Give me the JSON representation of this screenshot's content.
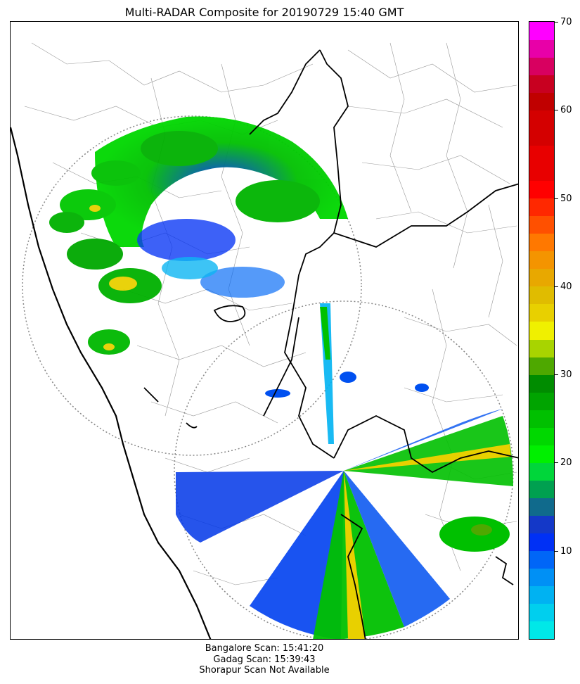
{
  "title": "Multi-RADAR Composite for 20190729 15:40 GMT",
  "colorbar": {
    "min": 0,
    "max": 70,
    "tick_labels": [
      "10",
      "20",
      "30",
      "40",
      "50",
      "60",
      "70"
    ],
    "tick_values": [
      10,
      20,
      30,
      40,
      50,
      60,
      70
    ],
    "levels": [
      {
        "from": 0,
        "to": 2,
        "color": "#00e8e8"
      },
      {
        "from": 2,
        "to": 4,
        "color": "#00cfee"
      },
      {
        "from": 4,
        "to": 6,
        "color": "#00b2f2"
      },
      {
        "from": 6,
        "to": 8,
        "color": "#0090f5"
      },
      {
        "from": 8,
        "to": 10,
        "color": "#0066f7"
      },
      {
        "from": 10,
        "to": 12,
        "color": "#0030f5"
      },
      {
        "from": 12,
        "to": 14,
        "color": "#1438c8"
      },
      {
        "from": 14,
        "to": 16,
        "color": "#106a8c"
      },
      {
        "from": 16,
        "to": 18,
        "color": "#00a050"
      },
      {
        "from": 18,
        "to": 20,
        "color": "#00d63a"
      },
      {
        "from": 20,
        "to": 22,
        "color": "#00f000"
      },
      {
        "from": 22,
        "to": 24,
        "color": "#00d800"
      },
      {
        "from": 24,
        "to": 26,
        "color": "#00c000"
      },
      {
        "from": 26,
        "to": 28,
        "color": "#00a400"
      },
      {
        "from": 28,
        "to": 30,
        "color": "#008c00"
      },
      {
        "from": 30,
        "to": 32,
        "color": "#4ea800"
      },
      {
        "from": 32,
        "to": 34,
        "color": "#a8d400"
      },
      {
        "from": 34,
        "to": 36,
        "color": "#f0f000"
      },
      {
        "from": 36,
        "to": 38,
        "color": "#e8d000"
      },
      {
        "from": 38,
        "to": 40,
        "color": "#e0bc00"
      },
      {
        "from": 40,
        "to": 42,
        "color": "#e8a800"
      },
      {
        "from": 42,
        "to": 44,
        "color": "#f49400"
      },
      {
        "from": 44,
        "to": 46,
        "color": "#ff7800"
      },
      {
        "from": 46,
        "to": 48,
        "color": "#ff5000"
      },
      {
        "from": 48,
        "to": 50,
        "color": "#ff2800"
      },
      {
        "from": 50,
        "to": 52,
        "color": "#ff0000"
      },
      {
        "from": 52,
        "to": 56,
        "color": "#e80000"
      },
      {
        "from": 56,
        "to": 60,
        "color": "#d40000"
      },
      {
        "from": 60,
        "to": 62,
        "color": "#c00000"
      },
      {
        "from": 62,
        "to": 64,
        "color": "#c80020"
      },
      {
        "from": 64,
        "to": 66,
        "color": "#d80060"
      },
      {
        "from": 66,
        "to": 68,
        "color": "#e800a8"
      },
      {
        "from": 68,
        "to": 70,
        "color": "#ff00ff"
      }
    ]
  },
  "footer": {
    "bangalore": "Bangalore Scan: 15:41:20",
    "gadag": "Gadag Scan: 15:39:43",
    "shorapur": "Shorapur Scan Not Available"
  }
}
